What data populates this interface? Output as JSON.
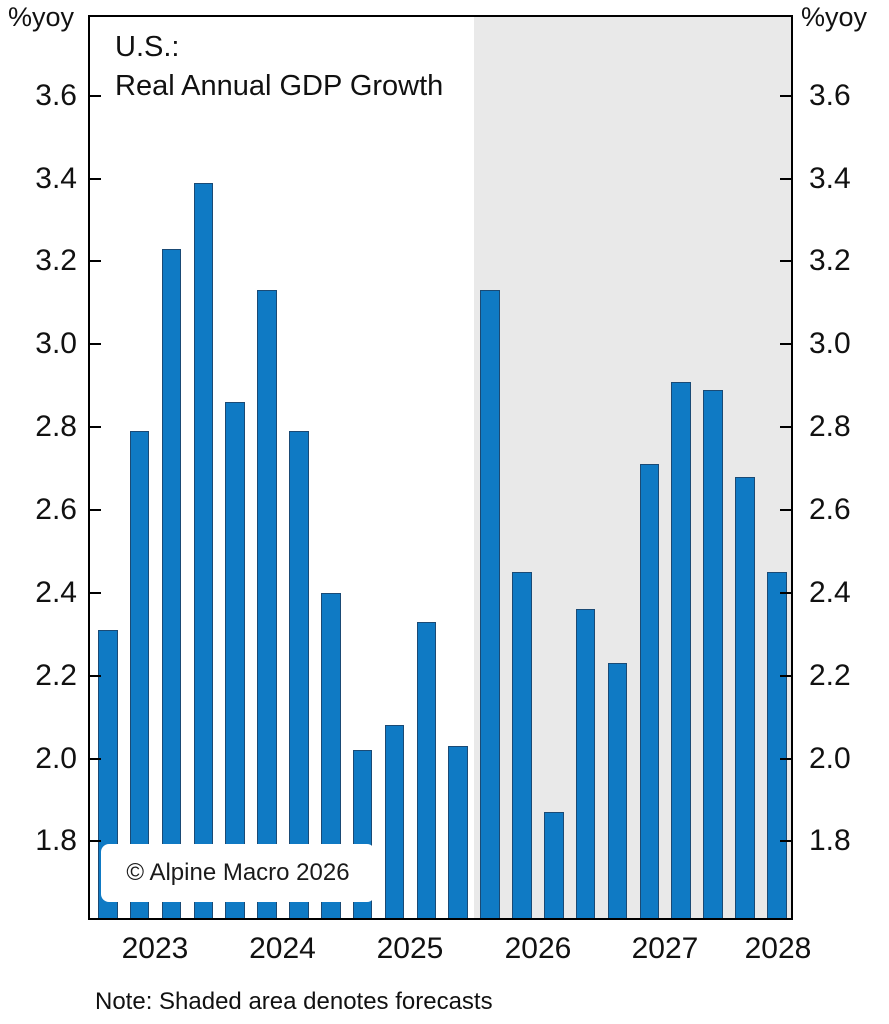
{
  "chart_data": {
    "type": "bar",
    "title_lines": [
      "U.S.:",
      "Real Annual GDP Growth"
    ],
    "unit_label": "%yoy",
    "year_labels": [
      "2023",
      "2024",
      "2025",
      "2026",
      "2027",
      "2028"
    ],
    "bars_per_year": [
      4,
      4,
      4,
      4,
      4,
      2
    ],
    "values": [
      2.31,
      2.79,
      3.23,
      3.39,
      2.86,
      3.13,
      2.79,
      2.4,
      2.02,
      2.08,
      2.33,
      2.03,
      3.13,
      2.45,
      1.87,
      2.36,
      2.23,
      2.71,
      2.91,
      2.89,
      2.68,
      2.45
    ],
    "y_ticks": [
      "3.6",
      "3.4",
      "3.2",
      "3.0",
      "2.8",
      "2.6",
      "2.4",
      "2.2",
      "2.0",
      "1.8"
    ],
    "ylim": [
      1.615,
      3.79
    ],
    "forecast_start_index": 12,
    "legend_position": "none",
    "grid": false,
    "note": "Note: Shaded area denotes forecasts",
    "watermark": "© Alpine Macro 2026",
    "colors": {
      "bar": "#0f7ac4",
      "bar_border": "#1a4a75",
      "forecast_shade": "#e9e9e9",
      "axis": "#000000",
      "text": "#111111",
      "background": "#ffffff"
    }
  }
}
